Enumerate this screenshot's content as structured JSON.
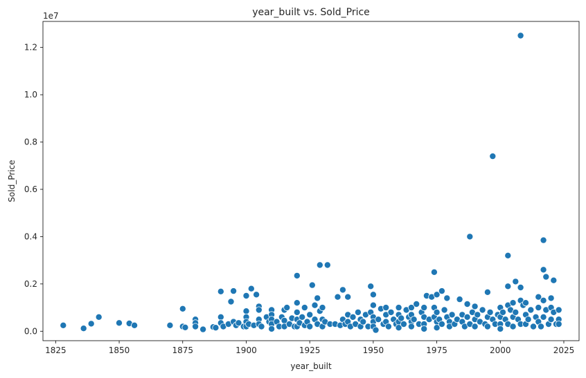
{
  "chart_data": {
    "type": "scatter",
    "title": "year_built vs. Sold_Price",
    "xlabel": "year_built",
    "ylabel": "Sold_Price",
    "y_scale_label": "1e7",
    "xlim": [
      1820,
      2031
    ],
    "ylim": [
      -0.04,
      1.31
    ],
    "x_ticks": [
      1825,
      1850,
      1875,
      1900,
      1925,
      1950,
      1975,
      2000,
      2025
    ],
    "y_ticks": [
      0.0,
      0.2,
      0.4,
      0.6,
      0.8,
      1.0,
      1.2
    ],
    "y_tick_labels": [
      "0.0",
      "0.2",
      "0.4",
      "0.6",
      "0.8",
      "1.0",
      "1.2"
    ],
    "grid": false,
    "marker_color": "#1f77b4",
    "series": [
      {
        "points": [
          [
            1828,
            0.025
          ],
          [
            1836,
            0.012
          ],
          [
            1839,
            0.032
          ],
          [
            1842,
            0.06
          ],
          [
            1850,
            0.035
          ],
          [
            1854,
            0.033
          ],
          [
            1856,
            0.025
          ],
          [
            1870,
            0.025
          ],
          [
            1875,
            0.095
          ],
          [
            1875,
            0.02
          ],
          [
            1876,
            0.016
          ],
          [
            1880,
            0.05
          ],
          [
            1880,
            0.035
          ],
          [
            1880,
            0.02
          ],
          [
            1883,
            0.008
          ],
          [
            1887,
            0.018
          ],
          [
            1888,
            0.015
          ],
          [
            1890,
            0.168
          ],
          [
            1890,
            0.06
          ],
          [
            1890,
            0.035
          ],
          [
            1891,
            0.02
          ],
          [
            1893,
            0.03
          ],
          [
            1894,
            0.125
          ],
          [
            1895,
            0.17
          ],
          [
            1895,
            0.04
          ],
          [
            1896,
            0.025
          ],
          [
            1897,
            0.035
          ],
          [
            1899,
            0.02
          ],
          [
            1900,
            0.15
          ],
          [
            1900,
            0.085
          ],
          [
            1900,
            0.06
          ],
          [
            1900,
            0.04
          ],
          [
            1900,
            0.02
          ],
          [
            1901,
            0.03
          ],
          [
            1902,
            0.18
          ],
          [
            1903,
            0.025
          ],
          [
            1904,
            0.155
          ],
          [
            1905,
            0.105
          ],
          [
            1905,
            0.09
          ],
          [
            1905,
            0.05
          ],
          [
            1905,
            0.03
          ],
          [
            1906,
            0.02
          ],
          [
            1908,
            0.06
          ],
          [
            1909,
            0.04
          ],
          [
            1910,
            0.09
          ],
          [
            1910,
            0.07
          ],
          [
            1910,
            0.05
          ],
          [
            1910,
            0.03
          ],
          [
            1910,
            0.01
          ],
          [
            1912,
            0.04
          ],
          [
            1913,
            0.02
          ],
          [
            1914,
            0.06
          ],
          [
            1915,
            0.09
          ],
          [
            1915,
            0.045
          ],
          [
            1915,
            0.02
          ],
          [
            1916,
            0.1
          ],
          [
            1917,
            0.03
          ],
          [
            1918,
            0.055
          ],
          [
            1919,
            0.02
          ],
          [
            1920,
            0.235
          ],
          [
            1920,
            0.12
          ],
          [
            1920,
            0.08
          ],
          [
            1920,
            0.05
          ],
          [
            1920,
            0.02
          ],
          [
            1921,
            0.035
          ],
          [
            1922,
            0.06
          ],
          [
            1923,
            0.1
          ],
          [
            1923,
            0.025
          ],
          [
            1924,
            0.04
          ],
          [
            1925,
            0.07
          ],
          [
            1925,
            0.02
          ],
          [
            1926,
            0.195
          ],
          [
            1927,
            0.11
          ],
          [
            1927,
            0.05
          ],
          [
            1928,
            0.14
          ],
          [
            1928,
            0.03
          ],
          [
            1929,
            0.28
          ],
          [
            1929,
            0.085
          ],
          [
            1930,
            0.1
          ],
          [
            1930,
            0.05
          ],
          [
            1930,
            0.02
          ],
          [
            1931,
            0.04
          ],
          [
            1932,
            0.28
          ],
          [
            1933,
            0.03
          ],
          [
            1935,
            0.03
          ],
          [
            1936,
            0.145
          ],
          [
            1937,
            0.025
          ],
          [
            1938,
            0.175
          ],
          [
            1938,
            0.05
          ],
          [
            1939,
            0.03
          ],
          [
            1940,
            0.145
          ],
          [
            1940,
            0.07
          ],
          [
            1940,
            0.04
          ],
          [
            1941,
            0.02
          ],
          [
            1942,
            0.06
          ],
          [
            1943,
            0.03
          ],
          [
            1944,
            0.08
          ],
          [
            1945,
            0.05
          ],
          [
            1945,
            0.02
          ],
          [
            1946,
            0.04
          ],
          [
            1947,
            0.07
          ],
          [
            1948,
            0.02
          ],
          [
            1949,
            0.19
          ],
          [
            1949,
            0.08
          ],
          [
            1950,
            0.155
          ],
          [
            1950,
            0.11
          ],
          [
            1950,
            0.06
          ],
          [
            1950,
            0.04
          ],
          [
            1950,
            0.02
          ],
          [
            1951,
            0.005
          ],
          [
            1952,
            0.05
          ],
          [
            1953,
            0.095
          ],
          [
            1954,
            0.03
          ],
          [
            1955,
            0.1
          ],
          [
            1955,
            0.07
          ],
          [
            1955,
            0.04
          ],
          [
            1956,
            0.02
          ],
          [
            1957,
            0.08
          ],
          [
            1958,
            0.05
          ],
          [
            1959,
            0.03
          ],
          [
            1960,
            0.1
          ],
          [
            1960,
            0.07
          ],
          [
            1960,
            0.04
          ],
          [
            1960,
            0.015
          ],
          [
            1961,
            0.055
          ],
          [
            1962,
            0.03
          ],
          [
            1963,
            0.09
          ],
          [
            1964,
            0.06
          ],
          [
            1965,
            0.1
          ],
          [
            1965,
            0.07
          ],
          [
            1965,
            0.04
          ],
          [
            1965,
            0.02
          ],
          [
            1966,
            0.05
          ],
          [
            1967,
            0.115
          ],
          [
            1968,
            0.03
          ],
          [
            1969,
            0.08
          ],
          [
            1970,
            0.1
          ],
          [
            1970,
            0.06
          ],
          [
            1970,
            0.03
          ],
          [
            1970,
            0.01
          ],
          [
            1971,
            0.15
          ],
          [
            1972,
            0.05
          ],
          [
            1973,
            0.145
          ],
          [
            1974,
            0.25
          ],
          [
            1974,
            0.1
          ],
          [
            1974,
            0.06
          ],
          [
            1975,
            0.155
          ],
          [
            1975,
            0.08
          ],
          [
            1975,
            0.04
          ],
          [
            1975,
            0.015
          ],
          [
            1976,
            0.05
          ],
          [
            1977,
            0.17
          ],
          [
            1977,
            0.03
          ],
          [
            1978,
            0.09
          ],
          [
            1979,
            0.14
          ],
          [
            1979,
            0.06
          ],
          [
            1980,
            0.04
          ],
          [
            1980,
            0.02
          ],
          [
            1981,
            0.07
          ],
          [
            1982,
            0.03
          ],
          [
            1983,
            0.05
          ],
          [
            1984,
            0.135
          ],
          [
            1985,
            0.07
          ],
          [
            1985,
            0.04
          ],
          [
            1986,
            0.02
          ],
          [
            1987,
            0.115
          ],
          [
            1987,
            0.06
          ],
          [
            1988,
            0.4
          ],
          [
            1988,
            0.03
          ],
          [
            1989,
            0.08
          ],
          [
            1990,
            0.105
          ],
          [
            1990,
            0.05
          ],
          [
            1990,
            0.02
          ],
          [
            1991,
            0.07
          ],
          [
            1992,
            0.04
          ],
          [
            1993,
            0.09
          ],
          [
            1994,
            0.03
          ],
          [
            1995,
            0.165
          ],
          [
            1995,
            0.06
          ],
          [
            1995,
            0.02
          ],
          [
            1996,
            0.08
          ],
          [
            1997,
            0.74
          ],
          [
            1997,
            0.05
          ],
          [
            1998,
            0.03
          ],
          [
            1999,
            0.07
          ],
          [
            2000,
            0.1
          ],
          [
            2000,
            0.06
          ],
          [
            2000,
            0.03
          ],
          [
            2000,
            0.01
          ],
          [
            2001,
            0.08
          ],
          [
            2002,
            0.05
          ],
          [
            2003,
            0.32
          ],
          [
            2003,
            0.19
          ],
          [
            2003,
            0.11
          ],
          [
            2003,
            0.03
          ],
          [
            2004,
            0.09
          ],
          [
            2005,
            0.12
          ],
          [
            2005,
            0.06
          ],
          [
            2005,
            0.02
          ],
          [
            2006,
            0.21
          ],
          [
            2006,
            0.08
          ],
          [
            2007,
            0.05
          ],
          [
            2008,
            1.25
          ],
          [
            2008,
            0.185
          ],
          [
            2008,
            0.13
          ],
          [
            2008,
            0.03
          ],
          [
            2009,
            0.11
          ],
          [
            2010,
            0.12
          ],
          [
            2010,
            0.07
          ],
          [
            2010,
            0.03
          ],
          [
            2011,
            0.05
          ],
          [
            2012,
            0.09
          ],
          [
            2013,
            0.02
          ],
          [
            2014,
            0.06
          ],
          [
            2015,
            0.145
          ],
          [
            2015,
            0.1
          ],
          [
            2015,
            0.04
          ],
          [
            2016,
            0.02
          ],
          [
            2017,
            0.385
          ],
          [
            2017,
            0.26
          ],
          [
            2017,
            0.13
          ],
          [
            2017,
            0.06
          ],
          [
            2018,
            0.23
          ],
          [
            2018,
            0.09
          ],
          [
            2019,
            0.03
          ],
          [
            2020,
            0.14
          ],
          [
            2020,
            0.1
          ],
          [
            2020,
            0.05
          ],
          [
            2021,
            0.215
          ],
          [
            2021,
            0.08
          ],
          [
            2022,
            0.03
          ],
          [
            2023,
            0.09
          ],
          [
            2023,
            0.05
          ],
          [
            2023,
            0.03
          ]
        ]
      }
    ]
  }
}
